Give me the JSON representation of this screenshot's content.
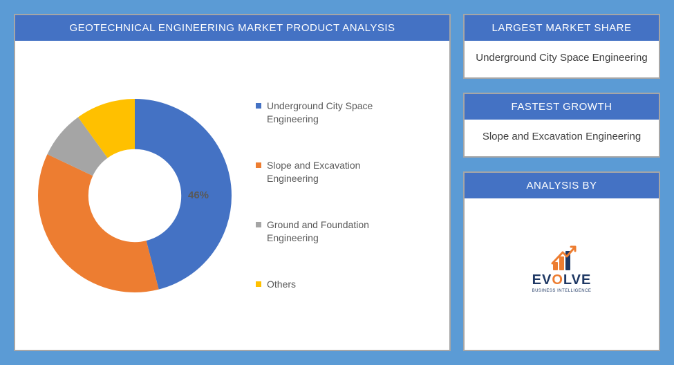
{
  "main": {
    "title": "GEOTECHNICAL ENGINEERING MARKET PRODUCT ANALYSIS",
    "chart": {
      "type": "donut",
      "background_color": "#ffffff",
      "inner_radius_pct": 48,
      "callout_label": "46%",
      "callout_color": "#595959",
      "callout_fontsize": 15,
      "slices": [
        {
          "label": "Underground City Space Engineering",
          "value": 46,
          "color": "#4472c4"
        },
        {
          "label": "Slope and Excavation Engineering",
          "value": 36,
          "color": "#ed7d31"
        },
        {
          "label": "Ground and Foundation Engineering",
          "value": 8,
          "color": "#a5a5a5"
        },
        {
          "label": "Others",
          "value": 10,
          "color": "#ffc000"
        }
      ],
      "legend_fontsize": 14,
      "legend_color": "#595959"
    }
  },
  "side": {
    "market_share": {
      "header": "LARGEST MARKET SHARE",
      "value": "Underground City Space Engineering"
    },
    "fastest_growth": {
      "header": "FASTEST GROWTH",
      "value": "Slope and Excavation Engineering"
    },
    "analysis_by": {
      "header": "ANALYSIS BY",
      "brand_main": "EV",
      "brand_accent": "O",
      "brand_rest": "LVE",
      "brand_sub": "BUSINESS INTELLIGENCE",
      "brand_main_color": "#1f3864",
      "brand_accent_color": "#ed7d31",
      "brand_fontsize": 20,
      "logo_bars": [
        {
          "h": 12,
          "color": "#ed7d31"
        },
        {
          "h": 20,
          "color": "#ed7d31"
        },
        {
          "h": 28,
          "color": "#1f3864"
        }
      ],
      "logo_arrow_color": "#ed7d31"
    }
  },
  "theme": {
    "page_background": "#5b9bd5",
    "panel_border": "#a6a6a6",
    "header_background": "#4472c4",
    "header_text_color": "#ffffff",
    "body_text_color": "#404040"
  }
}
